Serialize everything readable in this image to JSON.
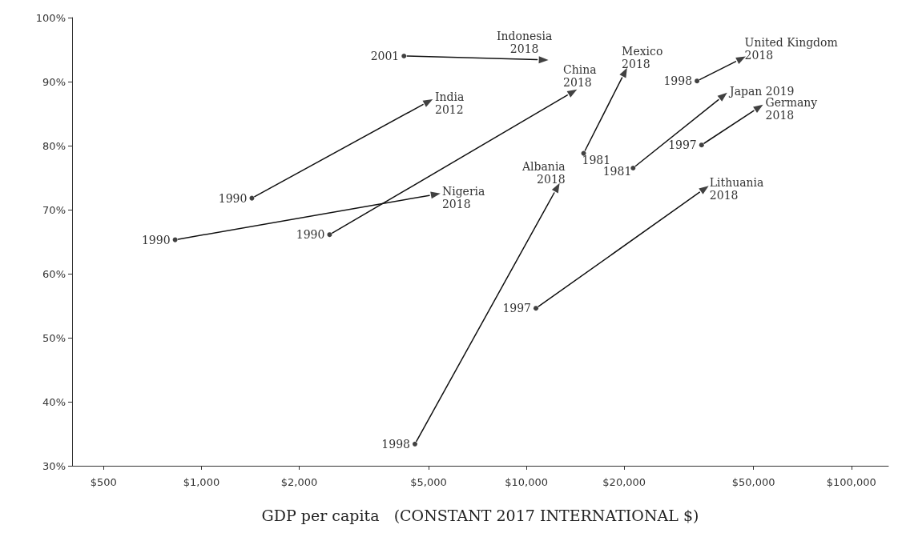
{
  "chart_data": {
    "type": "line",
    "xlabel": "GDP per capita   (CONSTANT 2017 INTERNATIONAL $)",
    "log": "x",
    "grid": false,
    "xlim": [
      400,
      130000
    ],
    "ylim": [
      30,
      100
    ],
    "xticks": [
      {
        "value": 500,
        "label": "$500"
      },
      {
        "value": 1000,
        "label": "$1,000"
      },
      {
        "value": 2000,
        "label": "$2,000"
      },
      {
        "value": 5000,
        "label": "$5,000"
      },
      {
        "value": 10000,
        "label": "$10,000"
      },
      {
        "value": 20000,
        "label": "$20,000"
      },
      {
        "value": 50000,
        "label": "$50,000"
      },
      {
        "value": 100000,
        "label": "$100,000"
      }
    ],
    "yticks": [
      {
        "value": 30,
        "label": "30%"
      },
      {
        "value": 40,
        "label": "40%"
      },
      {
        "value": 50,
        "label": "50%"
      },
      {
        "value": 60,
        "label": "60%"
      },
      {
        "value": 70,
        "label": "70%"
      },
      {
        "value": 80,
        "label": "80%"
      },
      {
        "value": 90,
        "label": "90%"
      },
      {
        "value": 100,
        "label": "100%"
      }
    ],
    "series": [
      {
        "type": "scatter",
        "marker": "circle",
        "color": "#111111",
        "x": [
          1430,
          830,
          2480,
          4200,
          15000,
          4540,
          33500,
          21300,
          34600,
          10700
        ],
        "values": [
          71.8,
          65.3,
          66.1,
          94,
          78.8,
          33.4,
          90.1,
          76.5,
          80.1,
          54.6
        ]
      },
      {
        "type": "scatter",
        "marker": "triangle",
        "color": "#111111",
        "x": [
          5000,
          5260,
          13900,
          11300,
          20100,
          12450,
          45900,
          40400,
          52000,
          35400
        ],
        "values": [
          86.9,
          72.4,
          88.4,
          93.4,
          91.5,
          73.5,
          93.6,
          87.8,
          86,
          73.3
        ]
      }
    ],
    "annotations": [
      {
        "text": "1990",
        "x": 1430,
        "y": 71.8
      },
      {
        "text": "India\n2012",
        "x": 5000,
        "y": 86.9
      },
      {
        "text": "1990",
        "x": 830,
        "y": 65.3
      },
      {
        "text": "Nigeria\n2018",
        "x": 5260,
        "y": 72.4
      },
      {
        "text": "1990",
        "x": 2480,
        "y": 66.1
      },
      {
        "text": "China\n2018",
        "x": 13900,
        "y": 88.4
      },
      {
        "text": "2001",
        "x": 4200,
        "y": 94
      },
      {
        "text": "Indonesia\n2018",
        "x": 11300,
        "y": 93.4
      },
      {
        "text": "1981",
        "x": 15000,
        "y": 78.8
      },
      {
        "text": "Mexico\n2018",
        "x": 20100,
        "y": 91.5
      },
      {
        "text": "1998",
        "x": 4540,
        "y": 33.4
      },
      {
        "text": "Albania\n2018",
        "x": 12450,
        "y": 73.5
      },
      {
        "text": "1998",
        "x": 33500,
        "y": 90.1
      },
      {
        "text": "United Kingdom\n2018",
        "x": 45900,
        "y": 93.6
      },
      {
        "text": "1981",
        "x": 21300,
        "y": 76.5
      },
      {
        "text": "Japan 2019",
        "x": 40400,
        "y": 87.8
      },
      {
        "text": "1997",
        "x": 34600,
        "y": 80.1
      },
      {
        "text": "Germany\n2018",
        "x": 52000,
        "y": 86
      },
      {
        "text": "1997",
        "x": 10700,
        "y": 54.6
      },
      {
        "text": "Lithuania\n2018",
        "x": 35400,
        "y": 73.3
      }
    ]
  }
}
